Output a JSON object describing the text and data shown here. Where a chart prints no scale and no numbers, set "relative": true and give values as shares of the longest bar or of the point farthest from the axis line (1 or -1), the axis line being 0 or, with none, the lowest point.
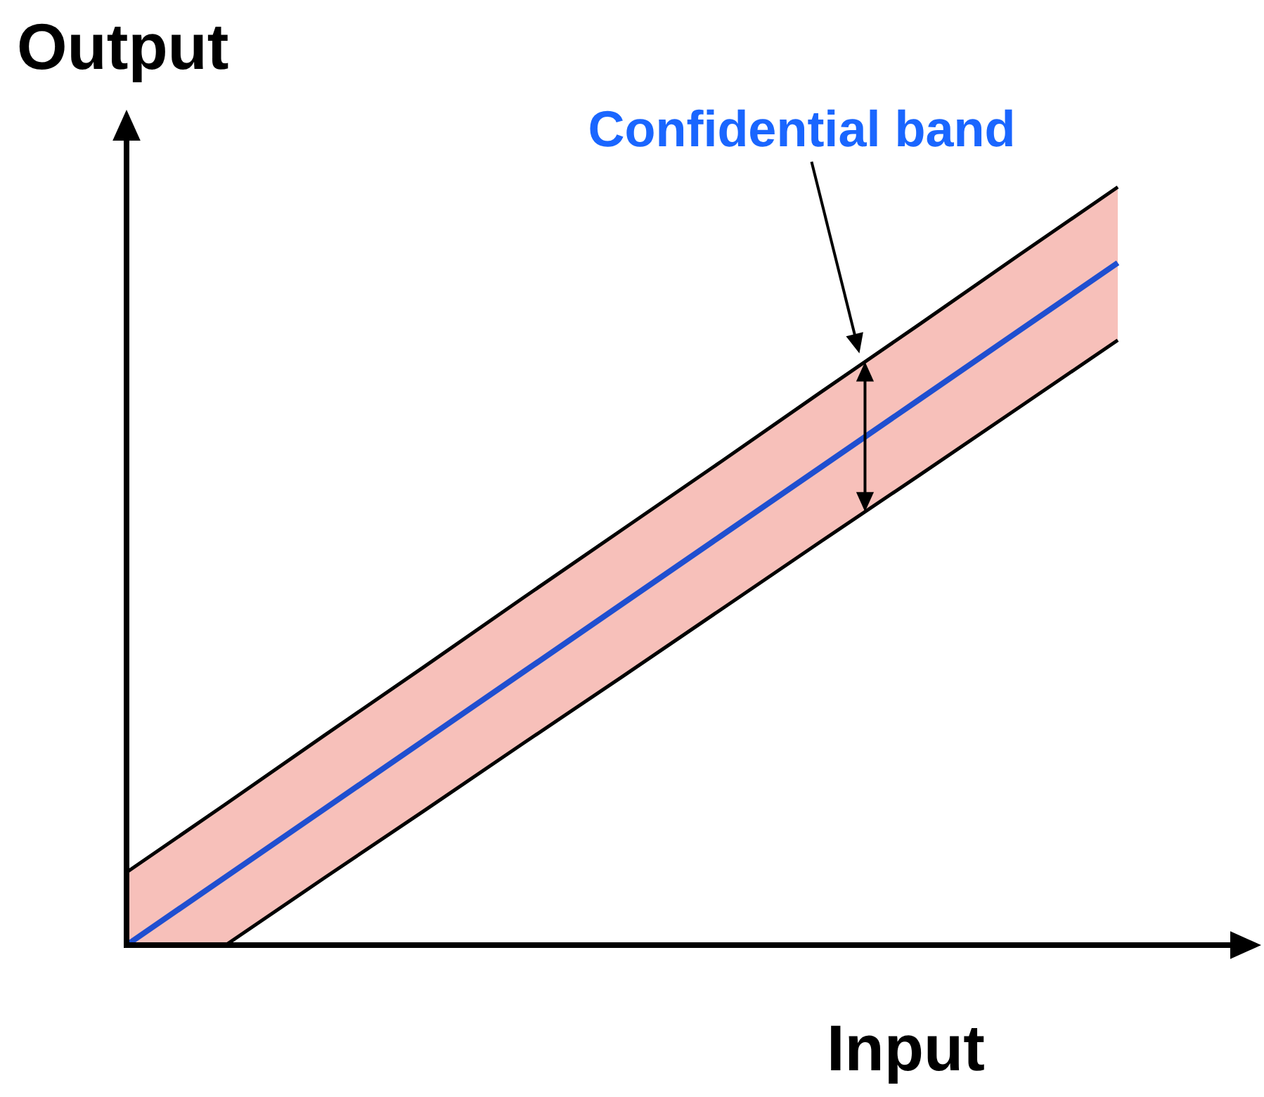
{
  "chart_data": {
    "type": "line",
    "xlabel": "Input",
    "ylabel": "Output",
    "annotations": [
      "Confidential band"
    ],
    "relative": true,
    "marker": "none",
    "categories": [
      null,
      null,
      null,
      null,
      null,
      null,
      null,
      null,
      null,
      null,
      null
    ],
    "series": [
      {
        "color": "#1f4fd0",
        "values": [
          0,
          0.09,
          0.18,
          0.27,
          0.36,
          0.45,
          0.54,
          0.63,
          0.72,
          0.81,
          0.9
        ],
        "lower": [
          0,
          0,
          0.089,
          0.177,
          0.266,
          0.354,
          0.443,
          0.532,
          0.62,
          0.709,
          0.798
        ],
        "upper": [
          0.096,
          0.186,
          0.277,
          0.367,
          0.458,
          0.548,
          0.638,
          0.729,
          0.819,
          0.91,
          1
        ]
      },
      {
        "color": "#000000",
        "values": [
          0.096,
          0.186,
          0.277,
          0.367,
          0.458,
          0.548,
          0.638,
          0.729,
          0.819,
          0.91,
          1
        ]
      },
      {
        "color": "#000000",
        "values": [
          null,
          0,
          0.089,
          0.177,
          0.266,
          0.354,
          0.443,
          0.532,
          0.62,
          0.709,
          0.798
        ]
      }
    ]
  }
}
